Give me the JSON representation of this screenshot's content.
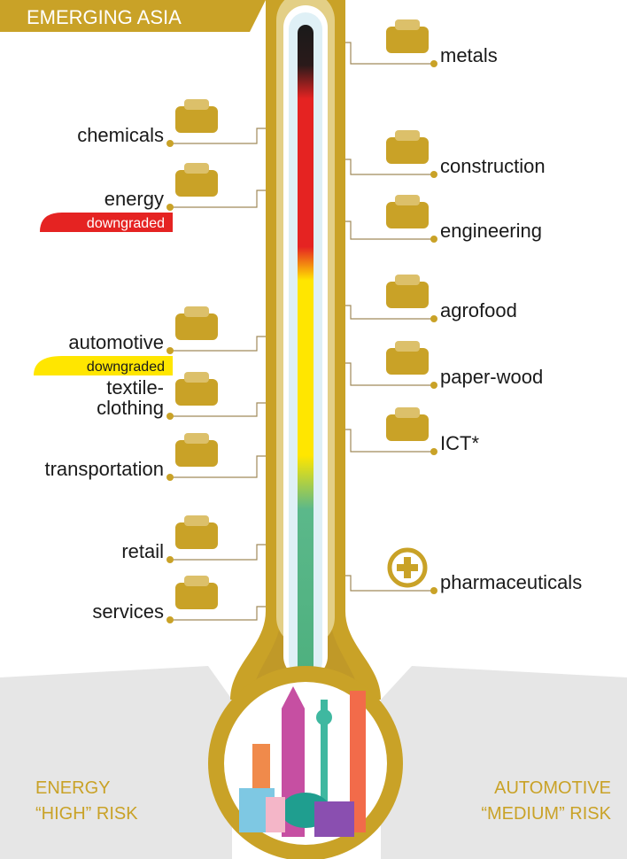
{
  "banner": "EMERGING ASIA",
  "left_sectors": [
    {
      "lines": [
        "chemicals"
      ]
    },
    {
      "lines": [
        "energy"
      ],
      "tag": "downgraded"
    },
    {
      "lines": [
        "automotive"
      ],
      "tag": "downgraded"
    },
    {
      "lines": [
        "textile-",
        "clothing"
      ]
    },
    {
      "lines": [
        "transportation"
      ]
    },
    {
      "lines": [
        "retail"
      ]
    },
    {
      "lines": [
        "services"
      ]
    }
  ],
  "right_sectors": [
    {
      "lines": [
        "metals"
      ]
    },
    {
      "lines": [
        "construction"
      ]
    },
    {
      "lines": [
        "engineering"
      ]
    },
    {
      "lines": [
        "agrofood"
      ]
    },
    {
      "lines": [
        "paper-wood"
      ]
    },
    {
      "lines": [
        "ICT*"
      ]
    },
    {
      "lines": [
        "pharmaceuticals"
      ]
    }
  ],
  "footer": {
    "left": {
      "line1": "ENERGY",
      "line2": "“HIGH” RISK"
    },
    "right": {
      "line1": "AUTOMOTIVE",
      "line2": "“MEDIUM” RISK"
    }
  }
}
